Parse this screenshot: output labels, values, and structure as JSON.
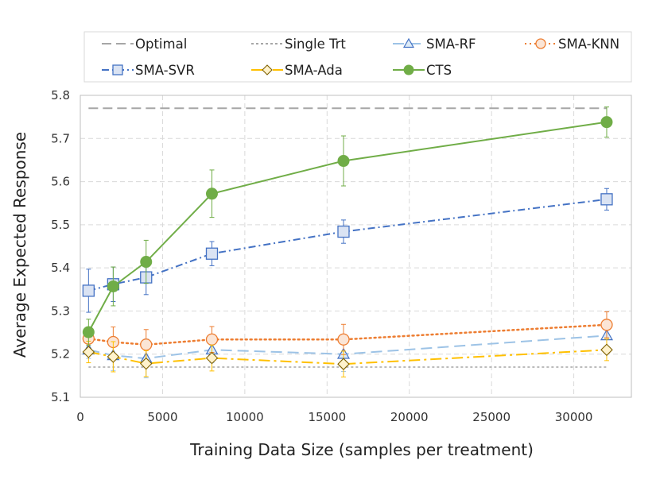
{
  "chart_data": {
    "type": "line",
    "title": "",
    "xlabel": "Training Data Size (samples per treatment)",
    "ylabel": "Average Expected Response",
    "xlim": [
      0,
      33500
    ],
    "ylim": [
      5.1,
      5.8
    ],
    "xticks": [
      0,
      5000,
      10000,
      15000,
      20000,
      25000,
      30000
    ],
    "yticks": [
      5.1,
      5.2,
      5.3,
      5.4,
      5.5,
      5.6,
      5.7,
      5.8
    ],
    "xtick_labels": [
      "0",
      "5000",
      "10000",
      "15000",
      "20000",
      "25000",
      "30000"
    ],
    "ytick_labels": [
      "5.1",
      "5.2",
      "5.3",
      "5.4",
      "5.5",
      "5.6",
      "5.7",
      "5.8"
    ],
    "grid": true,
    "legend_position": "top",
    "x": [
      500,
      2000,
      4000,
      8000,
      16000,
      32000
    ],
    "series": [
      {
        "name": "Optimal",
        "color": "#A6A6A6",
        "dash": "dashed",
        "marker": "none",
        "values": [
          5.77,
          5.77,
          5.77,
          5.77,
          5.77,
          5.77
        ]
      },
      {
        "name": "Single Trt",
        "color": "#A6A6A6",
        "dash": "dotted",
        "marker": "none",
        "values": [
          5.17,
          5.17,
          5.17,
          5.17,
          5.17,
          5.17
        ]
      },
      {
        "name": "SMA-RF",
        "color": "#9DC3E6",
        "dash": "longdash",
        "marker": "triangle",
        "values": [
          5.21,
          5.197,
          5.19,
          5.21,
          5.2,
          5.243
        ],
        "errors": [
          0.02,
          0.035,
          0.045,
          0.03,
          0.04,
          0.03
        ]
      },
      {
        "name": "SMA-KNN",
        "color": "#ED7D31",
        "dash": "dot",
        "marker": "circle-open",
        "values": [
          5.236,
          5.228,
          5.222,
          5.234,
          5.234,
          5.268
        ],
        "errors": [
          0.025,
          0.035,
          0.035,
          0.03,
          0.035,
          0.03
        ]
      },
      {
        "name": "SMA-SVR",
        "color": "#4472C4",
        "dash": "dashdot",
        "marker": "square",
        "values": [
          5.347,
          5.362,
          5.378,
          5.433,
          5.484,
          5.559
        ],
        "errors": [
          0.05,
          0.04,
          0.04,
          0.028,
          0.027,
          0.025
        ]
      },
      {
        "name": "SMA-Ada",
        "color": "#FFC000",
        "dash": "longdashdot",
        "marker": "diamond",
        "values": [
          5.205,
          5.194,
          5.178,
          5.191,
          5.177,
          5.21
        ],
        "errors": [
          0.025,
          0.035,
          0.03,
          0.03,
          0.03,
          0.025
        ]
      },
      {
        "name": "CTS",
        "color": "#70AD47",
        "dash": "solid",
        "marker": "circle-filled",
        "values": [
          5.251,
          5.357,
          5.414,
          5.572,
          5.648,
          5.738
        ],
        "errors": [
          0.03,
          0.045,
          0.05,
          0.055,
          0.058,
          0.035
        ]
      }
    ]
  }
}
